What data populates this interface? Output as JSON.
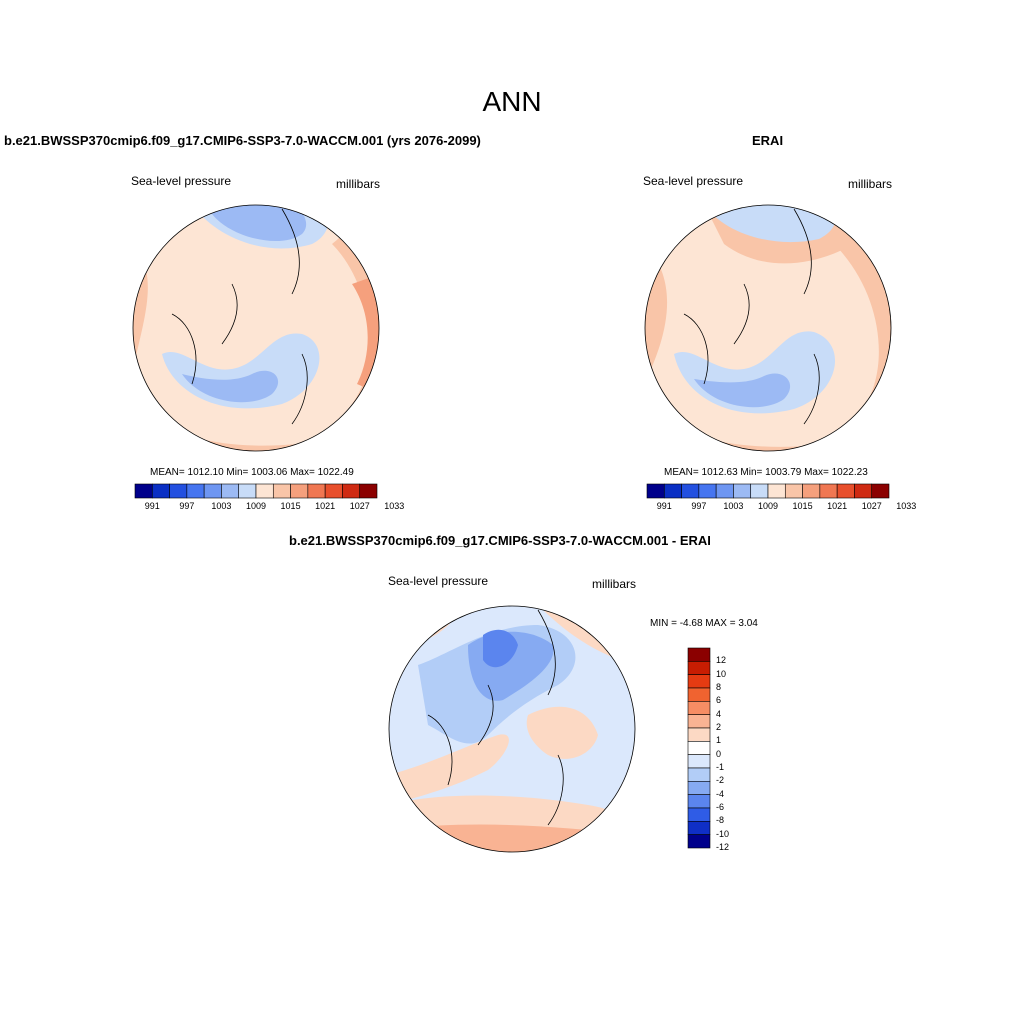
{
  "title": "ANN",
  "panels": [
    {
      "id": "model",
      "title": "b.e21.BWSSP370cmip6.f09_g17.CMIP6-SSP3-7.0-WACCM.001 (yrs 2076-2099)",
      "variable": "Sea-level pressure",
      "units": "millibars",
      "stats": "MEAN= 1012.10  Min= 1003.06  Max= 1022.49",
      "colorbar_ticks": [
        "991",
        "997",
        "1003",
        "1009",
        "1015",
        "1021",
        "1027",
        "1033"
      ]
    },
    {
      "id": "obs",
      "title": "ERAI",
      "variable": "Sea-level pressure",
      "units": "millibars",
      "stats": "MEAN= 1012.63  Min= 1003.79  Max= 1022.23",
      "colorbar_ticks": [
        "991",
        "997",
        "1003",
        "1009",
        "1015",
        "1021",
        "1027",
        "1033"
      ]
    },
    {
      "id": "diff",
      "title": "b.e21.BWSSP370cmip6.f09_g17.CMIP6-SSP3-7.0-WACCM.001 - ERAI",
      "variable": "Sea-level pressure",
      "units": "millibars",
      "stats": "MIN =  -4.68 MAX =   3.04",
      "colorbar_ticks": [
        "12",
        "10",
        "8",
        "6",
        "4",
        "2",
        "1",
        "0",
        "-1",
        "-2",
        "-4",
        "-6",
        "-8",
        "-10",
        "-12"
      ]
    }
  ],
  "colors": {
    "seq": [
      "#00008b",
      "#0a2fc4",
      "#2350e0",
      "#4675f0",
      "#6e96f2",
      "#9cbaf4",
      "#c8dcf8",
      "#fde5d4",
      "#f9c5a8",
      "#f5a07d",
      "#f07752",
      "#e84f2c",
      "#cf2a12",
      "#8b0000"
    ],
    "diff": [
      "#8b0000",
      "#c81d02",
      "#e53b12",
      "#f06330",
      "#f68d64",
      "#f9b393",
      "#fcd9c4",
      "#ffffff",
      "#dbe8fc",
      "#b2cdf7",
      "#86aaf2",
      "#5b85ee",
      "#2f5ce6",
      "#0f2fc6",
      "#00008b"
    ]
  }
}
